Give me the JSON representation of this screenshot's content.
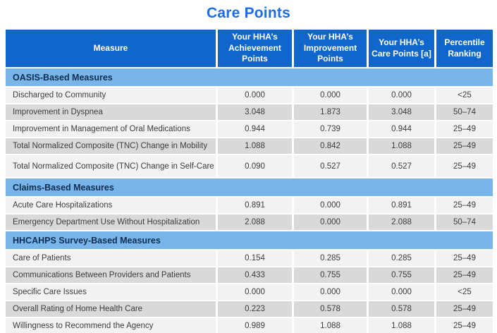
{
  "title": "Care Points",
  "colors": {
    "title_blue": "#1b6ce8",
    "header_blue": "#1166cc",
    "section_band_blue": "#79b5e8",
    "section_text_navy": "#0d2e54",
    "row_light_gray": "#f2f2f2",
    "row_dark_gray": "#d9d9d9",
    "header_text": "#ffffff",
    "body_text": "#3d3d3d"
  },
  "table": {
    "columns": [
      "Measure",
      "Your HHA’s Achievement Points",
      "Your HHA’s Improvement Points",
      "Your HHA’s Care Points [a]",
      "Percentile Ranking"
    ],
    "sections": [
      {
        "name": "OASIS-Based Measures",
        "rows": [
          {
            "measure": "Discharged to Community",
            "achievement": "0.000",
            "improvement": "0.000",
            "care_points": "0.000",
            "percentile": "<25"
          },
          {
            "measure": "Improvement in Dyspnea",
            "achievement": "3.048",
            "improvement": "1.873",
            "care_points": "3.048",
            "percentile": "50–74"
          },
          {
            "measure": "Improvement in Management of Oral Medications",
            "achievement": "0.944",
            "improvement": "0.739",
            "care_points": "0.944",
            "percentile": "25–49"
          },
          {
            "measure": "Total Normalized Composite (TNC) Change in Mobility",
            "achievement": "1.088",
            "improvement": "0.842",
            "care_points": "1.088",
            "percentile": "25–49"
          },
          {
            "measure": "Total Normalized Composite (TNC) Change in Self-Care",
            "achievement": "0.090",
            "improvement": "0.527",
            "care_points": "0.527",
            "percentile": "25–49"
          }
        ]
      },
      {
        "name": "Claims-Based Measures",
        "rows": [
          {
            "measure": "Acute Care Hospitalizations",
            "achievement": "0.891",
            "improvement": "0.000",
            "care_points": "0.891",
            "percentile": "25–49"
          },
          {
            "measure": "Emergency Department Use Without Hospitalization",
            "achievement": "2.088",
            "improvement": "0.000",
            "care_points": "2.088",
            "percentile": "50–74"
          }
        ]
      },
      {
        "name": "HHCAHPS Survey-Based Measures",
        "rows": [
          {
            "measure": "Care of Patients",
            "achievement": "0.154",
            "improvement": "0.285",
            "care_points": "0.285",
            "percentile": "25–49"
          },
          {
            "measure": "Communications Between Providers and Patients",
            "achievement": "0.433",
            "improvement": "0.755",
            "care_points": "0.755",
            "percentile": "25–49"
          },
          {
            "measure": "Specific Care Issues",
            "achievement": "0.000",
            "improvement": "0.000",
            "care_points": "0.000",
            "percentile": "<25"
          },
          {
            "measure": "Overall Rating of Home Health Care",
            "achievement": "0.223",
            "improvement": "0.578",
            "care_points": "0.578",
            "percentile": "25–49"
          },
          {
            "measure": "Willingness to Recommend the Agency",
            "achievement": "0.989",
            "improvement": "1.088",
            "care_points": "1.088",
            "percentile": "25–49"
          }
        ]
      }
    ]
  }
}
